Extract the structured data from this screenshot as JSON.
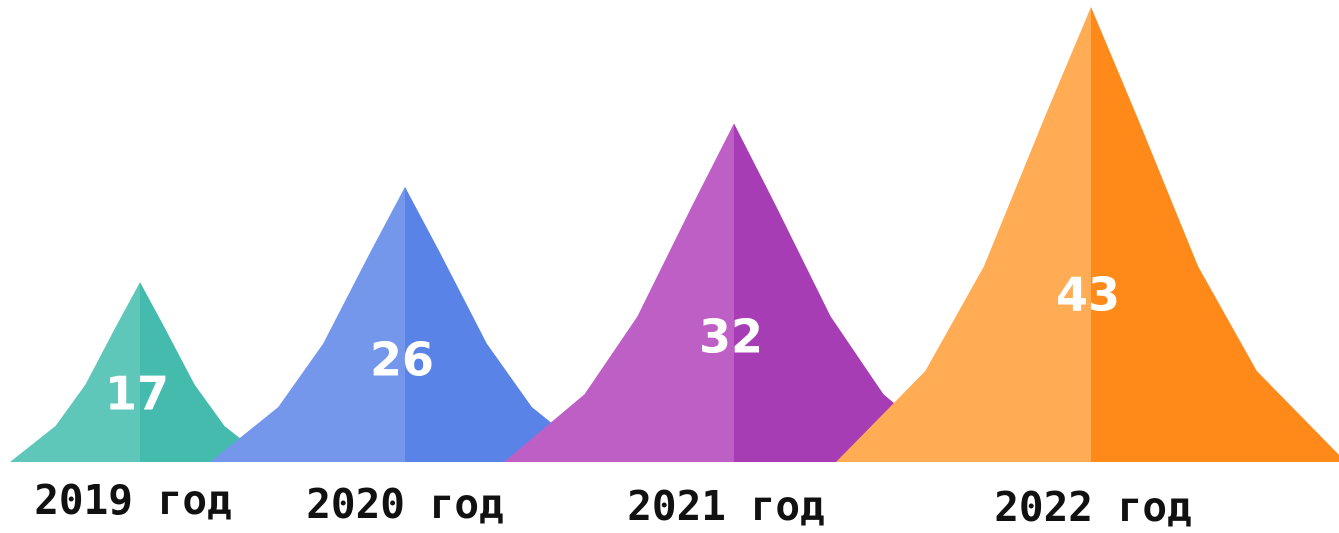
{
  "chart_data": {
    "type": "bar",
    "categories": [
      "2019 год",
      "2020 год",
      "2021 год",
      "2022 год"
    ],
    "values": [
      17,
      26,
      32,
      43
    ],
    "value_labels": [
      "17",
      "26",
      "32",
      "43"
    ],
    "title": "",
    "xlabel": "",
    "ylabel": "",
    "grid": false,
    "colors": [
      {
        "left": "#5fc7b9",
        "right": "#45bbae"
      },
      {
        "left": "#7497ec",
        "right": "#5a83e8"
      },
      {
        "left": "#be5fc6",
        "right": "#a63db5"
      },
      {
        "left": "#ffac55",
        "right": "#ff8a1a"
      }
    ]
  }
}
